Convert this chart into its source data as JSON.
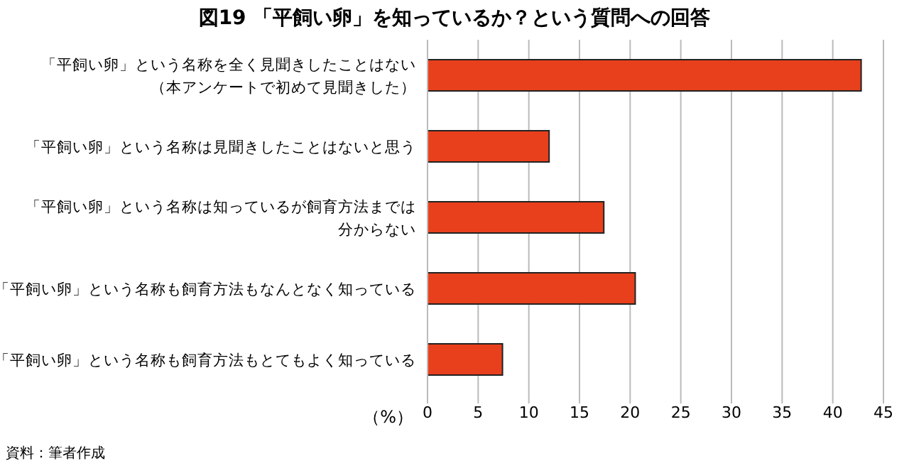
{
  "chart_data": {
    "type": "bar",
    "orientation": "horizontal",
    "title": "図19 「平飼い卵」を知っているか？という質問への回答",
    "categories": [
      "「平飼い卵」という名称を全く見聞きしたことはない（本アンケートで初めて見聞きした）",
      "「平飼い卵」という名称は見聞きしたことはないと思う",
      "「平飼い卵」という名称は知っているが飼育方法までは分からない",
      "「平飼い卵」という名称も飼育方法もなんとなく知っている",
      "「平飼い卵」という名称も飼育方法もとてもよく知っている"
    ],
    "values": [
      42.8,
      12,
      17.4,
      20.5,
      7.4
    ],
    "color": "#e8401c",
    "xlabel": "（%）",
    "xlim": [
      0,
      45
    ],
    "xticks": [
      0,
      5,
      10,
      15,
      20,
      25,
      30,
      35,
      40,
      45
    ],
    "grid": "x",
    "annotations": [
      "資料：筆者作成"
    ]
  }
}
